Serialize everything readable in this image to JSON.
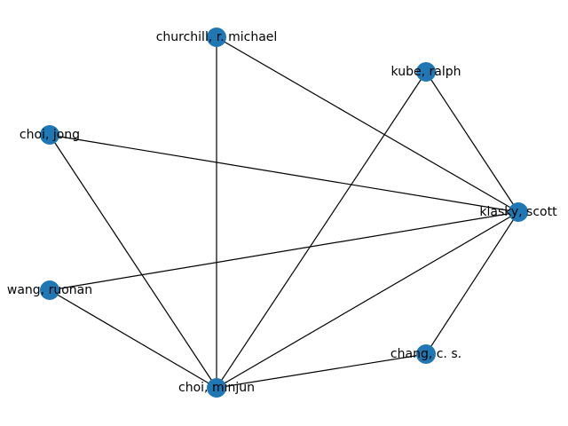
{
  "node_color": "#1f77b4",
  "edge_color": "#000000",
  "nodes": [
    {
      "id": "churchill",
      "label": "churchill, r. michael"
    },
    {
      "id": "kube",
      "label": "kube, ralph"
    },
    {
      "id": "choi_jong",
      "label": "choi, jong"
    },
    {
      "id": "klasky",
      "label": "klasky, scott"
    },
    {
      "id": "wang",
      "label": "wang, ruonan"
    },
    {
      "id": "chang",
      "label": "chang, c. s."
    },
    {
      "id": "choi_minjun",
      "label": "choi, minjun"
    }
  ],
  "edges": [
    [
      "churchill",
      "klasky"
    ],
    [
      "churchill",
      "choi_minjun"
    ],
    [
      "kube",
      "klasky"
    ],
    [
      "kube",
      "choi_minjun"
    ],
    [
      "choi_jong",
      "klasky"
    ],
    [
      "choi_jong",
      "choi_minjun"
    ],
    [
      "wang",
      "klasky"
    ],
    [
      "wang",
      "choi_minjun"
    ],
    [
      "klasky",
      "chang"
    ],
    [
      "klasky",
      "choi_minjun"
    ],
    [
      "chang",
      "choi_minjun"
    ]
  ]
}
